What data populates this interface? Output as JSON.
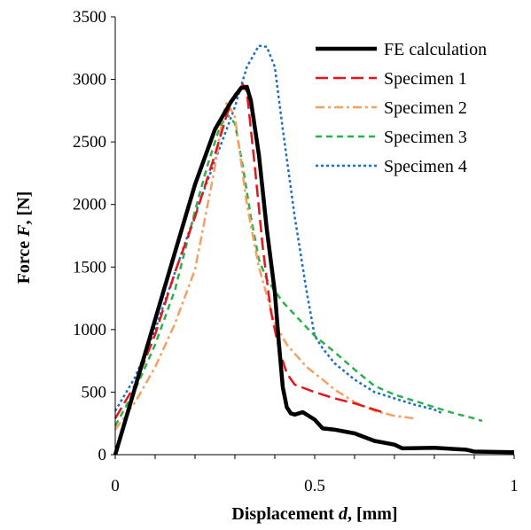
{
  "chart_data": {
    "type": "line",
    "xlabel_parts": [
      "Displacement ",
      "d",
      ", [mm]"
    ],
    "ylabel_parts": [
      "Force ",
      "F",
      ", [N]"
    ],
    "xlim": [
      0,
      1
    ],
    "ylim": [
      0,
      3500
    ],
    "x_ticks": [
      0,
      0.5,
      1
    ],
    "x_tick_labels": [
      "0",
      "0.5",
      "1"
    ],
    "x_minor_step": 0.1,
    "y_ticks": [
      0,
      500,
      1000,
      1500,
      2000,
      2500,
      3000,
      3500
    ],
    "y_tick_labels": [
      "0",
      "500",
      "1000",
      "1500",
      "2000",
      "2500",
      "3000",
      "3500"
    ],
    "grid": false,
    "legend_position": "top-right",
    "series": [
      {
        "name": "FE calculation",
        "color": "#000000",
        "style": "solid",
        "points": [
          [
            0,
            0
          ],
          [
            0.05,
            540
          ],
          [
            0.1,
            1080
          ],
          [
            0.15,
            1620
          ],
          [
            0.2,
            2160
          ],
          [
            0.25,
            2600
          ],
          [
            0.29,
            2820
          ],
          [
            0.315,
            2930
          ],
          [
            0.33,
            2940
          ],
          [
            0.34,
            2830
          ],
          [
            0.36,
            2400
          ],
          [
            0.38,
            1800
          ],
          [
            0.4,
            1300
          ],
          [
            0.41,
            900
          ],
          [
            0.42,
            540
          ],
          [
            0.43,
            380
          ],
          [
            0.44,
            330
          ],
          [
            0.45,
            320
          ],
          [
            0.47,
            340
          ],
          [
            0.5,
            280
          ],
          [
            0.52,
            210
          ],
          [
            0.55,
            200
          ],
          [
            0.6,
            170
          ],
          [
            0.65,
            110
          ],
          [
            0.7,
            80
          ],
          [
            0.72,
            50
          ],
          [
            0.8,
            55
          ],
          [
            0.85,
            45
          ],
          [
            0.88,
            40
          ],
          [
            0.9,
            25
          ],
          [
            1.0,
            20
          ]
        ]
      },
      {
        "name": "Specimen 1",
        "color": "#e8141b",
        "style": "longdash",
        "points": [
          [
            0,
            290
          ],
          [
            0.05,
            560
          ],
          [
            0.1,
            960
          ],
          [
            0.15,
            1460
          ],
          [
            0.2,
            1900
          ],
          [
            0.25,
            2400
          ],
          [
            0.28,
            2720
          ],
          [
            0.3,
            2880
          ],
          [
            0.32,
            2960
          ],
          [
            0.33,
            2900
          ],
          [
            0.35,
            2300
          ],
          [
            0.37,
            1650
          ],
          [
            0.39,
            1150
          ],
          [
            0.41,
            850
          ],
          [
            0.43,
            650
          ],
          [
            0.45,
            560
          ],
          [
            0.5,
            500
          ],
          [
            0.55,
            450
          ],
          [
            0.6,
            410
          ],
          [
            0.65,
            360
          ],
          [
            0.68,
            330
          ]
        ]
      },
      {
        "name": "Specimen 2",
        "color": "#f5a05e",
        "style": "dashdot",
        "points": [
          [
            0,
            200
          ],
          [
            0.05,
            420
          ],
          [
            0.1,
            700
          ],
          [
            0.15,
            1050
          ],
          [
            0.2,
            1480
          ],
          [
            0.25,
            2300
          ],
          [
            0.27,
            2720
          ],
          [
            0.28,
            2820
          ],
          [
            0.3,
            2700
          ],
          [
            0.33,
            2000
          ],
          [
            0.36,
            1500
          ],
          [
            0.4,
            1050
          ],
          [
            0.43,
            880
          ],
          [
            0.48,
            700
          ],
          [
            0.52,
            600
          ],
          [
            0.55,
            520
          ],
          [
            0.6,
            420
          ],
          [
            0.65,
            350
          ],
          [
            0.7,
            310
          ],
          [
            0.75,
            290
          ]
        ]
      },
      {
        "name": "Specimen 3",
        "color": "#2bb04b",
        "style": "dash",
        "points": [
          [
            0,
            230
          ],
          [
            0.05,
            520
          ],
          [
            0.1,
            880
          ],
          [
            0.15,
            1320
          ],
          [
            0.2,
            1950
          ],
          [
            0.23,
            2300
          ],
          [
            0.26,
            2600
          ],
          [
            0.28,
            2720
          ],
          [
            0.3,
            2650
          ],
          [
            0.32,
            2300
          ],
          [
            0.34,
            1900
          ],
          [
            0.36,
            1560
          ],
          [
            0.38,
            1400
          ],
          [
            0.42,
            1220
          ],
          [
            0.47,
            1050
          ],
          [
            0.5,
            950
          ],
          [
            0.55,
            820
          ],
          [
            0.6,
            680
          ],
          [
            0.65,
            550
          ],
          [
            0.7,
            480
          ],
          [
            0.75,
            430
          ],
          [
            0.8,
            380
          ],
          [
            0.85,
            330
          ],
          [
            0.9,
            290
          ],
          [
            0.92,
            270
          ]
        ]
      },
      {
        "name": "Specimen 4",
        "color": "#1f6fc0",
        "style": "dot",
        "points": [
          [
            0,
            350
          ],
          [
            0.05,
            620
          ],
          [
            0.1,
            1000
          ],
          [
            0.15,
            1460
          ],
          [
            0.2,
            1920
          ],
          [
            0.25,
            2350
          ],
          [
            0.3,
            2780
          ],
          [
            0.33,
            3100
          ],
          [
            0.36,
            3270
          ],
          [
            0.38,
            3260
          ],
          [
            0.4,
            3100
          ],
          [
            0.42,
            2600
          ],
          [
            0.45,
            1900
          ],
          [
            0.48,
            1300
          ],
          [
            0.5,
            950
          ],
          [
            0.52,
            850
          ],
          [
            0.55,
            730
          ],
          [
            0.6,
            600
          ],
          [
            0.65,
            500
          ],
          [
            0.7,
            450
          ],
          [
            0.75,
            400
          ],
          [
            0.8,
            360
          ],
          [
            0.82,
            330
          ]
        ]
      }
    ]
  }
}
